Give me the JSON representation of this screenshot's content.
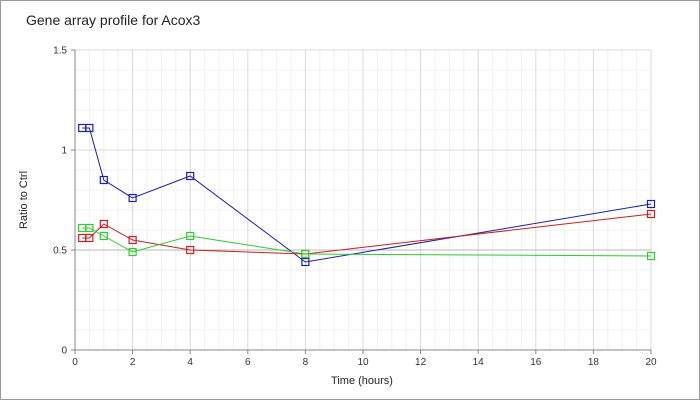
{
  "chart_data": {
    "type": "line",
    "title": "Gene array profile for Acox3",
    "xlabel": "Time (hours)",
    "ylabel": "Ratio to Ctrl",
    "xlim": [
      0,
      20
    ],
    "ylim": [
      0,
      1.5
    ],
    "x_ticks": [
      0,
      2,
      4,
      6,
      8,
      10,
      12,
      14,
      16,
      18,
      20
    ],
    "y_ticks": [
      0,
      0.5,
      1,
      1.5
    ],
    "y_tick_labels": [
      "0",
      "0.5",
      "1",
      "1.5"
    ],
    "grid": true,
    "minor_grid": true,
    "legend": "none",
    "marker": "open-square",
    "reference_line_y": 0.5,
    "series": [
      {
        "color": "#1f1fa8",
        "x": [
          0.25,
          0.5,
          1,
          2,
          4,
          8,
          20
        ],
        "y": [
          1.11,
          1.11,
          0.85,
          0.76,
          0.87,
          0.44,
          0.73
        ]
      },
      {
        "color": "#cc2020",
        "x": [
          0.25,
          0.5,
          1,
          2,
          4,
          8,
          20
        ],
        "y": [
          0.56,
          0.56,
          0.63,
          0.55,
          0.5,
          0.48,
          0.68
        ]
      },
      {
        "color": "#2ecc2e",
        "x": [
          0.25,
          0.5,
          1,
          2,
          4,
          8,
          20
        ],
        "y": [
          0.61,
          0.61,
          0.57,
          0.49,
          0.57,
          0.48,
          0.47
        ]
      }
    ]
  }
}
